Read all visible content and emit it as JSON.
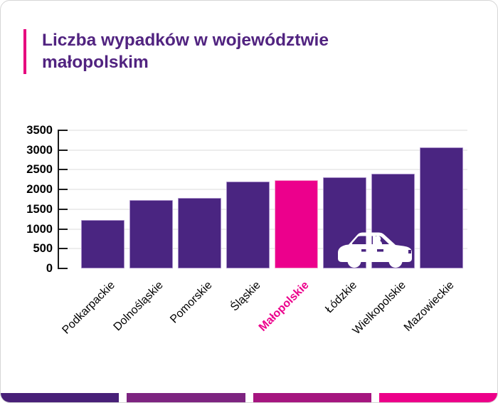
{
  "title": {
    "line1": "Liczba wypadków w województwie",
    "line2": "małopolskim",
    "color": "#512380",
    "accent_color": "#e6007e"
  },
  "chart_data": {
    "type": "bar",
    "categories": [
      "Podkarpackie",
      "Dolnośląskie",
      "Pomorskie",
      "Śląskie",
      "Małopolskie",
      "Łódzkie",
      "Wielkopolskie",
      "Mazowieckie"
    ],
    "values": [
      1220,
      1730,
      1790,
      2200,
      2240,
      2310,
      2400,
      3070
    ],
    "highlight_index": 4,
    "highlight_category": "Małopolskie",
    "title": "Liczba wypadków w województwie małopolskim",
    "xlabel": "",
    "ylabel": "",
    "ylim": [
      0,
      3500
    ],
    "ytick_labels": [
      "3500",
      "3000",
      "2500",
      "2000",
      "1500",
      "1000",
      "500",
      "0"
    ],
    "grid": true,
    "legend": false,
    "bar_color": "#4a2581",
    "bar_border_color": "#a98fc9",
    "highlight_color": "#ec008c",
    "highlight_border_color": "#f5a6cf",
    "axis_color": "#1a1a1a"
  },
  "decorations": {
    "car_icon": "car-icon",
    "car_icon_color": "#ffffff",
    "footer_stripe_colors": [
      "#482078",
      "#7d2480",
      "#a5157f",
      "#ec0089"
    ]
  }
}
